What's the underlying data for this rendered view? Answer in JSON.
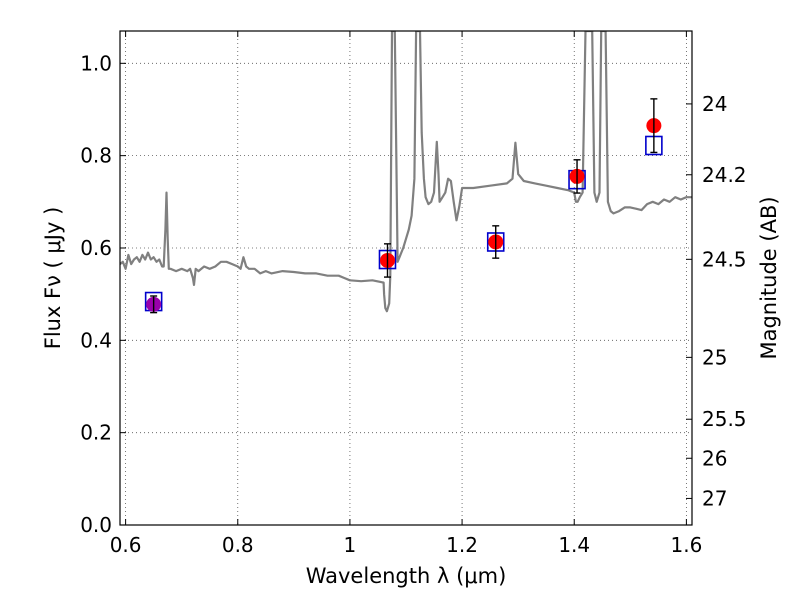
{
  "chart_data": {
    "type": "scatter",
    "xlabel": "Wavelength  λ (μm)",
    "ylabel": "Flux  Fν  ( μJy )",
    "ylabel_right": "Magnitude (AB)",
    "xlim": [
      0.59,
      1.61
    ],
    "ylim": [
      0.0,
      1.07
    ],
    "grid": true,
    "x_ticks": [
      {
        "value": 0.6,
        "label": "0.6"
      },
      {
        "value": 0.8,
        "label": "0.8"
      },
      {
        "value": 1.0,
        "label": "1"
      },
      {
        "value": 1.2,
        "label": "1.2"
      },
      {
        "value": 1.4,
        "label": "1.4"
      },
      {
        "value": 1.6,
        "label": "1.6"
      }
    ],
    "y_ticks": [
      {
        "value": 0.0,
        "label": "0.0"
      },
      {
        "value": 0.2,
        "label": "0.2"
      },
      {
        "value": 0.4,
        "label": "0.4"
      },
      {
        "value": 0.6,
        "label": "0.6"
      },
      {
        "value": 0.8,
        "label": "0.8"
      },
      {
        "value": 1.0,
        "label": "1.0"
      }
    ],
    "mag_ticks": [
      {
        "value": 24.0,
        "label": "24"
      },
      {
        "value": 24.2,
        "label": "24.2"
      },
      {
        "value": 24.5,
        "label": "24.5"
      },
      {
        "value": 25.0,
        "label": "25"
      },
      {
        "value": 25.5,
        "label": "25.5"
      },
      {
        "value": 26.0,
        "label": "26"
      },
      {
        "value": 27.0,
        "label": "27"
      }
    ],
    "colors": {
      "model": "#808080",
      "observed": "#ff0000",
      "observed_blend": "#9900aa",
      "model_box": "#0000cc",
      "errorbar": "#000000",
      "grid": "#555555"
    },
    "series": [
      {
        "points": [
          {
            "x": 0.65,
            "y": 0.478,
            "err": 0.018
          },
          {
            "x": 1.067,
            "y": 0.573,
            "err": 0.036
          },
          {
            "x": 1.26,
            "y": 0.613,
            "err": 0.035
          },
          {
            "x": 1.405,
            "y": 0.755,
            "err": 0.036
          },
          {
            "x": 1.542,
            "y": 0.865,
            "err": 0.058
          }
        ]
      },
      {
        "points": [
          {
            "x": 0.65,
            "y": 0.484
          },
          {
            "x": 1.067,
            "y": 0.575
          },
          {
            "x": 1.26,
            "y": 0.613
          },
          {
            "x": 1.405,
            "y": 0.748
          },
          {
            "x": 1.542,
            "y": 0.822
          }
        ]
      },
      {
        "points": [
          [
            0.59,
            0.565
          ],
          [
            0.595,
            0.57
          ],
          [
            0.6,
            0.555
          ],
          [
            0.605,
            0.585
          ],
          [
            0.61,
            0.565
          ],
          [
            0.615,
            0.575
          ],
          [
            0.62,
            0.58
          ],
          [
            0.625,
            0.57
          ],
          [
            0.63,
            0.585
          ],
          [
            0.635,
            0.575
          ],
          [
            0.64,
            0.59
          ],
          [
            0.645,
            0.575
          ],
          [
            0.65,
            0.58
          ],
          [
            0.655,
            0.57
          ],
          [
            0.66,
            0.575
          ],
          [
            0.665,
            0.56
          ],
          [
            0.668,
            0.56
          ],
          [
            0.671,
            0.64
          ],
          [
            0.673,
            0.72
          ],
          [
            0.675,
            0.62
          ],
          [
            0.677,
            0.555
          ],
          [
            0.68,
            0.555
          ],
          [
            0.69,
            0.55
          ],
          [
            0.7,
            0.555
          ],
          [
            0.71,
            0.55
          ],
          [
            0.715,
            0.555
          ],
          [
            0.72,
            0.535
          ],
          [
            0.722,
            0.52
          ],
          [
            0.725,
            0.555
          ],
          [
            0.73,
            0.55
          ],
          [
            0.74,
            0.56
          ],
          [
            0.75,
            0.555
          ],
          [
            0.76,
            0.56
          ],
          [
            0.77,
            0.57
          ],
          [
            0.78,
            0.57
          ],
          [
            0.79,
            0.565
          ],
          [
            0.8,
            0.56
          ],
          [
            0.805,
            0.555
          ],
          [
            0.81,
            0.58
          ],
          [
            0.815,
            0.56
          ],
          [
            0.82,
            0.555
          ],
          [
            0.83,
            0.555
          ],
          [
            0.84,
            0.545
          ],
          [
            0.85,
            0.55
          ],
          [
            0.86,
            0.545
          ],
          [
            0.88,
            0.55
          ],
          [
            0.9,
            0.548
          ],
          [
            0.92,
            0.545
          ],
          [
            0.94,
            0.545
          ],
          [
            0.96,
            0.54
          ],
          [
            0.98,
            0.54
          ],
          [
            0.99,
            0.535
          ],
          [
            1.0,
            0.53
          ],
          [
            1.02,
            0.528
          ],
          [
            1.04,
            0.53
          ],
          [
            1.06,
            0.525
          ],
          [
            1.061,
            0.5
          ],
          [
            1.063,
            0.47
          ],
          [
            1.066,
            0.463
          ],
          [
            1.07,
            0.48
          ],
          [
            1.072,
            0.54
          ],
          [
            1.075,
            1.07
          ],
          [
            1.08,
            1.07
          ],
          [
            1.085,
            0.57
          ],
          [
            1.09,
            0.585
          ],
          [
            1.095,
            0.6
          ],
          [
            1.1,
            0.62
          ],
          [
            1.105,
            0.64
          ],
          [
            1.11,
            0.67
          ],
          [
            1.115,
            0.75
          ],
          [
            1.118,
            1.07
          ],
          [
            1.125,
            1.07
          ],
          [
            1.128,
            0.85
          ],
          [
            1.132,
            0.75
          ],
          [
            1.135,
            0.71
          ],
          [
            1.14,
            0.695
          ],
          [
            1.145,
            0.7
          ],
          [
            1.15,
            0.72
          ],
          [
            1.155,
            0.83
          ],
          [
            1.158,
            0.76
          ],
          [
            1.16,
            0.7
          ],
          [
            1.165,
            0.71
          ],
          [
            1.17,
            0.72
          ],
          [
            1.175,
            0.75
          ],
          [
            1.18,
            0.745
          ],
          [
            1.185,
            0.7
          ],
          [
            1.19,
            0.66
          ],
          [
            1.195,
            0.69
          ],
          [
            1.2,
            0.73
          ],
          [
            1.22,
            0.73
          ],
          [
            1.25,
            0.735
          ],
          [
            1.28,
            0.74
          ],
          [
            1.29,
            0.75
          ],
          [
            1.295,
            0.828
          ],
          [
            1.3,
            0.76
          ],
          [
            1.31,
            0.745
          ],
          [
            1.33,
            0.74
          ],
          [
            1.35,
            0.735
          ],
          [
            1.37,
            0.73
          ],
          [
            1.39,
            0.725
          ],
          [
            1.4,
            0.72
          ],
          [
            1.403,
            0.7
          ],
          [
            1.406,
            0.7
          ],
          [
            1.41,
            0.71
          ],
          [
            1.415,
            0.72
          ],
          [
            1.42,
            1.07
          ],
          [
            1.432,
            1.07
          ],
          [
            1.436,
            0.72
          ],
          [
            1.44,
            0.7
          ],
          [
            1.445,
            0.72
          ],
          [
            1.448,
            1.07
          ],
          [
            1.456,
            1.07
          ],
          [
            1.46,
            0.7
          ],
          [
            1.465,
            0.68
          ],
          [
            1.47,
            0.675
          ],
          [
            1.48,
            0.68
          ],
          [
            1.49,
            0.688
          ],
          [
            1.5,
            0.688
          ],
          [
            1.51,
            0.685
          ],
          [
            1.52,
            0.682
          ],
          [
            1.53,
            0.695
          ],
          [
            1.54,
            0.7
          ],
          [
            1.55,
            0.695
          ],
          [
            1.56,
            0.705
          ],
          [
            1.57,
            0.7
          ],
          [
            1.58,
            0.71
          ],
          [
            1.59,
            0.705
          ],
          [
            1.6,
            0.71
          ],
          [
            1.61,
            0.71
          ]
        ]
      }
    ]
  }
}
